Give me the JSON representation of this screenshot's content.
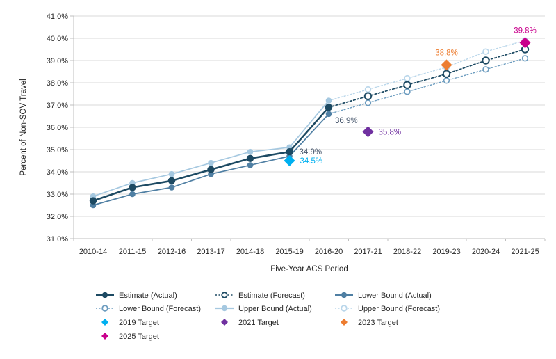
{
  "chart_data": {
    "type": "line",
    "title": "",
    "xlabel": "Five-Year ACS Period",
    "ylabel": "Percent of Non-SOV Travel",
    "ylim": [
      31.0,
      41.0
    ],
    "ytick_step": 1.0,
    "yticks": [
      "31.0%",
      "32.0%",
      "33.0%",
      "34.0%",
      "35.0%",
      "36.0%",
      "37.0%",
      "38.0%",
      "39.0%",
      "40.0%",
      "41.0%"
    ],
    "grid": true,
    "legend_position": "bottom",
    "categories": [
      "2010-14",
      "2011-15",
      "2012-16",
      "2013-17",
      "2014-18",
      "2015-19",
      "2016-20",
      "2017-21",
      "2018-22",
      "2019-23",
      "2020-24",
      "2021-25"
    ],
    "series": [
      {
        "name": "Estimate (Actual)",
        "line": "solid",
        "marker": "filled-circle",
        "color": "#1d4a63",
        "start_index": 0,
        "values": [
          32.7,
          33.3,
          33.6,
          34.1,
          34.6,
          34.9,
          36.9
        ]
      },
      {
        "name": "Estimate (Forecast)",
        "line": "dotted",
        "marker": "open-circle",
        "color": "#1d4a63",
        "start_index": 6,
        "values": [
          36.9,
          37.4,
          37.9,
          38.4,
          39.0,
          39.5
        ]
      },
      {
        "name": "Lower Bound (Actual)",
        "line": "solid",
        "marker": "filled-circle",
        "color": "#4f7fa3",
        "start_index": 0,
        "values": [
          32.5,
          33.0,
          33.3,
          33.9,
          34.3,
          34.7,
          36.6
        ]
      },
      {
        "name": "Lower Bound (Forecast)",
        "line": "dotted",
        "marker": "open-circle",
        "color": "#6c9cbf",
        "start_index": 6,
        "values": [
          36.6,
          37.1,
          37.6,
          38.1,
          38.6,
          39.1
        ]
      },
      {
        "name": "Upper Bound (Actual)",
        "line": "solid",
        "marker": "filled-circle",
        "color": "#a5c8e0",
        "start_index": 0,
        "values": [
          32.9,
          33.5,
          33.9,
          34.4,
          34.9,
          35.1,
          37.2
        ]
      },
      {
        "name": "Upper Bound (Forecast)",
        "line": "dotted",
        "marker": "open-circle",
        "color": "#b9d6ea",
        "start_index": 6,
        "values": [
          37.2,
          37.7,
          38.2,
          38.7,
          39.4,
          39.9
        ]
      }
    ],
    "targets": [
      {
        "name": "2019 Target",
        "category": "2015-19",
        "value": 34.5,
        "color": "#00b0f0",
        "label": "34.5%",
        "label_side": "right"
      },
      {
        "name": "2021 Target",
        "category": "2017-21",
        "value": 35.8,
        "color": "#7030a0",
        "label": "35.8%",
        "label_side": "right"
      },
      {
        "name": "2023 Target",
        "category": "2019-23",
        "value": 38.8,
        "color": "#ed7d31",
        "label": "38.8%",
        "label_side": "above"
      },
      {
        "name": "2025 Target",
        "category": "2021-25",
        "value": 39.8,
        "color": "#c9008c",
        "label": "39.8%",
        "label_side": "above"
      }
    ],
    "annotations": [
      {
        "text": "34.9%",
        "category": "2015-19",
        "value": 34.9,
        "color": "#44546a",
        "placement": "right"
      },
      {
        "text": "36.9%",
        "category": "2016-20",
        "value": 36.9,
        "color": "#44546a",
        "placement": "below-right"
      }
    ],
    "colors": {
      "gridline": "#d9d9d9",
      "axis_line": "#bfbfbf",
      "text": "#262626",
      "annotation_dark": "#44546a"
    }
  }
}
